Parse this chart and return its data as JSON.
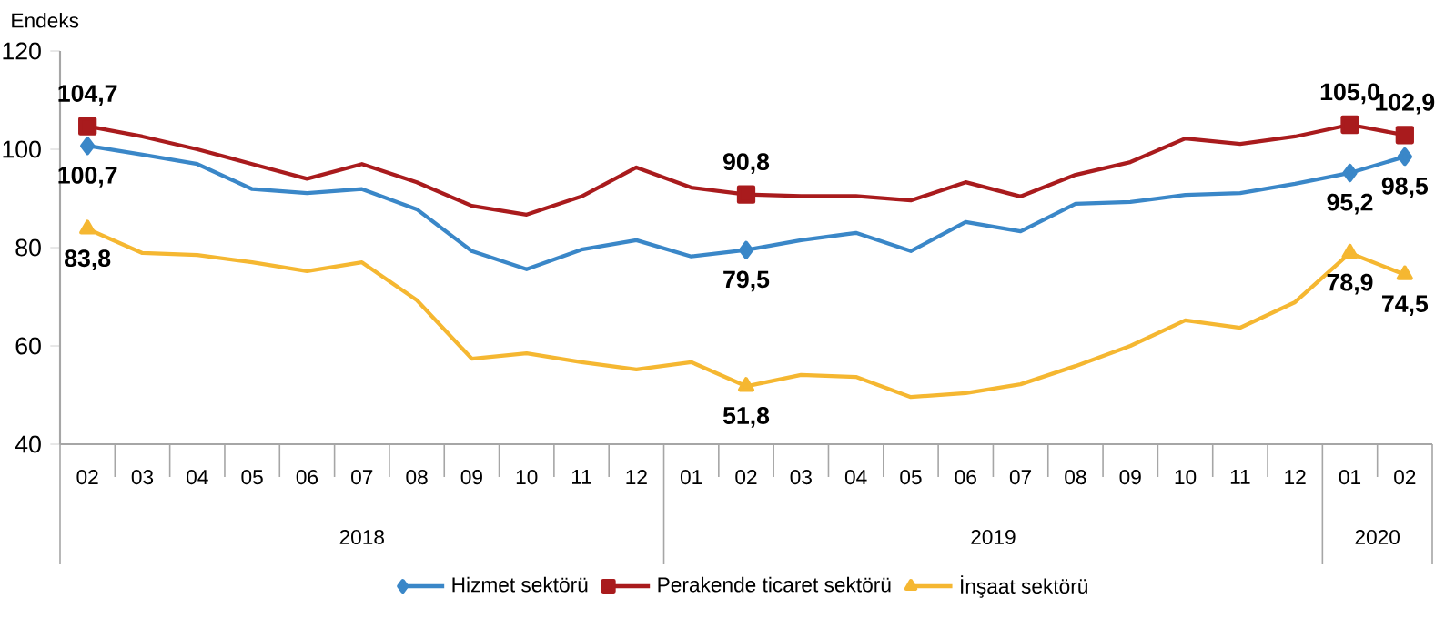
{
  "chart_data": {
    "type": "line",
    "ylabel": "Endeks",
    "categories": [
      "02",
      "03",
      "04",
      "05",
      "06",
      "07",
      "08",
      "09",
      "10",
      "11",
      "12",
      "01",
      "02",
      "03",
      "04",
      "05",
      "06",
      "07",
      "08",
      "09",
      "10",
      "11",
      "12",
      "01",
      "02"
    ],
    "annotations": [
      "2018",
      "2019",
      "2020"
    ],
    "ylim": [
      40,
      120
    ],
    "yticks": [
      40,
      60,
      80,
      100,
      120
    ],
    "grid": false,
    "legend": "bottom",
    "series": [
      {
        "name": "Hizmet sektörü",
        "color": "#3a87c8",
        "values": [
          100.7,
          98.9,
          97,
          91.9,
          91.1,
          91.9,
          87.8,
          79.3,
          75.6,
          79.6,
          81.5,
          78.2,
          79.5,
          81.5,
          83,
          79.3,
          85.2,
          83.3,
          88.9,
          89.3,
          90.7,
          91.1,
          93,
          95.2,
          98.5
        ],
        "value_labels": [
          "100,7",
          null,
          null,
          null,
          null,
          null,
          null,
          null,
          null,
          null,
          null,
          null,
          "79,5",
          null,
          null,
          null,
          null,
          null,
          null,
          null,
          null,
          null,
          null,
          "95,2",
          "98,5"
        ]
      },
      {
        "name": "Perakende ticaret sektörü",
        "color": "#a91b1d",
        "values": [
          104.7,
          102.6,
          100,
          97,
          94,
          97,
          93.3,
          88.5,
          86.7,
          90.4,
          96.3,
          92.2,
          90.8,
          90.5,
          90.5,
          89.6,
          93.3,
          90.4,
          94.8,
          97.4,
          102.2,
          101.1,
          102.6,
          105.0,
          102.9
        ],
        "value_labels": [
          "104,7",
          null,
          null,
          null,
          null,
          null,
          null,
          null,
          null,
          null,
          null,
          null,
          "90,8",
          null,
          null,
          null,
          null,
          null,
          null,
          null,
          null,
          null,
          null,
          "105,0",
          "102,9"
        ]
      },
      {
        "name": "İnşaat sektörü",
        "color": "#f5b731",
        "values": [
          83.8,
          78.9,
          78.5,
          77,
          75.2,
          77,
          69.3,
          57.4,
          58.5,
          56.7,
          55.2,
          56.7,
          51.8,
          54.1,
          53.7,
          49.6,
          50.4,
          52.2,
          55.9,
          60,
          65.2,
          63.7,
          68.9,
          78.9,
          74.5
        ],
        "value_labels": [
          "83,8",
          null,
          null,
          null,
          null,
          null,
          null,
          null,
          null,
          null,
          null,
          null,
          "51,8",
          null,
          null,
          null,
          null,
          null,
          null,
          null,
          null,
          null,
          null,
          "78,9",
          "74,5"
        ]
      }
    ]
  }
}
